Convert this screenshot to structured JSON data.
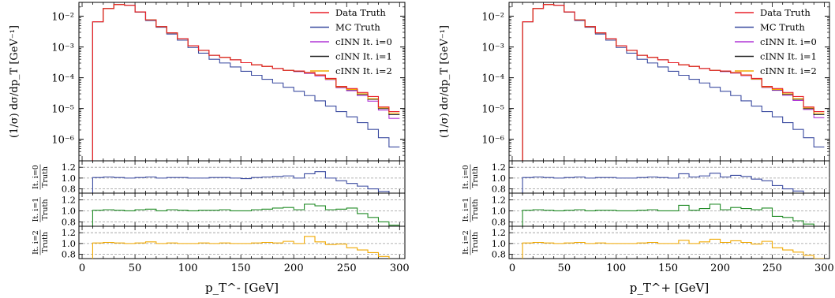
{
  "bins_x": [
    10,
    20,
    30,
    40,
    50,
    60,
    70,
    80,
    90,
    100,
    110,
    120,
    130,
    140,
    150,
    160,
    170,
    180,
    190,
    200,
    210,
    220,
    230,
    240,
    250,
    260,
    270,
    280,
    290,
    300
  ],
  "legend": [
    {
      "label": "Data Truth",
      "color": "#e8202a"
    },
    {
      "label": "MC Truth",
      "color": "#3b4ba0"
    },
    {
      "label": "cINN It. i=0",
      "color": "#b037d6"
    },
    {
      "label": "cINN It. i=1",
      "color": "#222222"
    },
    {
      "label": "cINN It. i=2",
      "color": "#f0a800"
    }
  ],
  "ratio_labels": [
    {
      "num": "It. i=0",
      "den": "Truth",
      "color": "#3b4ba0"
    },
    {
      "num": "It. i=1",
      "den": "Truth",
      "color": "#1f8a24"
    },
    {
      "num": "It. i=2",
      "den": "Truth",
      "color": "#f0a800"
    }
  ],
  "ylabel_main": "(1/σ) dσ/dp_T [GeV⁻¹]",
  "main_yticks": [
    "10⁻²",
    "10⁻³",
    "10⁻⁴",
    "10⁻⁵",
    "10⁻⁶"
  ],
  "ratio_yticks": [
    "1.2",
    "1.0",
    "0.8"
  ],
  "xticks": [
    "0",
    "50",
    "100",
    "150",
    "200",
    "250",
    "300"
  ],
  "chart_data": [
    {
      "type": "line",
      "xlabel": "p_T^- [GeV]",
      "ylabel": "(1/σ) dσ/dp_T [GeV⁻¹]",
      "xlim": [
        -3,
        305
      ],
      "ylim_log10": [
        -6.7,
        -1.55
      ],
      "y_scale": "log",
      "series": [
        {
          "name": "Data Truth",
          "values": [
            -2.18,
            -1.75,
            -1.62,
            -1.64,
            -1.86,
            -2.12,
            -2.34,
            -2.54,
            -2.73,
            -2.96,
            -3.11,
            -3.27,
            -3.34,
            -3.42,
            -3.51,
            -3.58,
            -3.63,
            -3.7,
            -3.76,
            -3.78,
            -3.83,
            -3.91,
            -4.02,
            -4.28,
            -4.35,
            -4.48,
            -4.61,
            -4.95,
            -5.1
          ]
        },
        {
          "name": "MC Truth",
          "values": [
            -2.18,
            -1.75,
            -1.62,
            -1.64,
            -1.87,
            -2.14,
            -2.36,
            -2.58,
            -2.78,
            -3.02,
            -3.2,
            -3.4,
            -3.52,
            -3.65,
            -3.79,
            -3.92,
            -4.05,
            -4.17,
            -4.31,
            -4.44,
            -4.58,
            -4.75,
            -4.92,
            -5.1,
            -5.27,
            -5.46,
            -5.68,
            -5.95,
            -6.25
          ]
        },
        {
          "name": "cINN It. i=0",
          "values": [
            -2.18,
            -1.75,
            -1.62,
            -1.64,
            -1.86,
            -2.12,
            -2.34,
            -2.54,
            -2.73,
            -2.96,
            -3.11,
            -3.27,
            -3.34,
            -3.42,
            -3.51,
            -3.58,
            -3.63,
            -3.7,
            -3.76,
            -3.8,
            -3.86,
            -3.94,
            -4.06,
            -4.33,
            -4.42,
            -4.58,
            -4.76,
            -5.05,
            -5.32
          ]
        },
        {
          "name": "cINN It. i=1",
          "values": [
            -2.18,
            -1.75,
            -1.62,
            -1.64,
            -1.86,
            -2.12,
            -2.34,
            -2.54,
            -2.73,
            -2.96,
            -3.11,
            -3.27,
            -3.34,
            -3.42,
            -3.51,
            -3.58,
            -3.63,
            -3.7,
            -3.76,
            -3.79,
            -3.84,
            -3.92,
            -4.04,
            -4.3,
            -4.39,
            -4.54,
            -4.7,
            -5.0,
            -5.2
          ]
        },
        {
          "name": "cINN It. i=2",
          "values": [
            -2.18,
            -1.75,
            -1.62,
            -1.64,
            -1.86,
            -2.12,
            -2.34,
            -2.54,
            -2.73,
            -2.96,
            -3.11,
            -3.27,
            -3.34,
            -3.42,
            -3.51,
            -3.58,
            -3.63,
            -3.7,
            -3.76,
            -3.78,
            -3.84,
            -3.92,
            -4.04,
            -4.3,
            -4.38,
            -4.52,
            -4.68,
            -4.98,
            -5.15
          ]
        }
      ],
      "ratios": [
        {
          "name": "It. i=0 / Truth",
          "ylim": [
            0.72,
            1.32
          ],
          "values": [
            1.01,
            1.02,
            1.01,
            1.0,
            1.01,
            1.02,
            1.0,
            1.01,
            1.01,
            1.0,
            1.0,
            1.01,
            1.01,
            1.0,
            0.99,
            1.01,
            1.02,
            1.03,
            1.04,
            1.0,
            1.08,
            1.12,
            1.0,
            0.95,
            0.9,
            0.85,
            0.8,
            0.75,
            0.7
          ]
        },
        {
          "name": "It. i=1 / Truth",
          "ylim": [
            0.72,
            1.32
          ],
          "values": [
            1.01,
            1.02,
            1.01,
            1.0,
            1.02,
            1.03,
            1.0,
            1.02,
            1.01,
            1.0,
            1.01,
            1.01,
            1.02,
            1.0,
            1.0,
            1.02,
            1.03,
            1.05,
            1.06,
            1.02,
            1.12,
            1.09,
            1.02,
            1.03,
            1.05,
            0.95,
            0.88,
            0.8,
            0.74
          ]
        },
        {
          "name": "It. i=2 / Truth",
          "ylim": [
            0.72,
            1.32
          ],
          "values": [
            1.01,
            1.02,
            1.01,
            1.0,
            1.01,
            1.03,
            1.0,
            1.01,
            1.0,
            1.0,
            1.01,
            1.0,
            1.01,
            1.0,
            1.0,
            1.01,
            1.02,
            1.01,
            1.04,
            1.0,
            1.13,
            1.03,
            0.98,
            0.99,
            0.92,
            0.88,
            0.83,
            0.76,
            0.7
          ]
        }
      ]
    },
    {
      "type": "line",
      "xlabel": "p_T^+ [GeV]",
      "ylabel": "(1/σ) dσ/dp_T [GeV⁻¹]",
      "xlim": [
        -3,
        305
      ],
      "ylim_log10": [
        -6.7,
        -1.55
      ],
      "y_scale": "log",
      "series": [
        {
          "name": "Data Truth",
          "values": [
            -2.18,
            -1.75,
            -1.62,
            -1.64,
            -1.86,
            -2.12,
            -2.34,
            -2.54,
            -2.73,
            -2.96,
            -3.11,
            -3.27,
            -3.34,
            -3.42,
            -3.51,
            -3.58,
            -3.63,
            -3.7,
            -3.76,
            -3.78,
            -3.83,
            -3.91,
            -4.02,
            -4.28,
            -4.35,
            -4.48,
            -4.61,
            -4.95,
            -5.1
          ]
        },
        {
          "name": "MC Truth",
          "values": [
            -2.18,
            -1.75,
            -1.62,
            -1.64,
            -1.87,
            -2.14,
            -2.36,
            -2.58,
            -2.78,
            -3.02,
            -3.2,
            -3.4,
            -3.52,
            -3.65,
            -3.79,
            -3.92,
            -4.05,
            -4.17,
            -4.31,
            -4.44,
            -4.58,
            -4.75,
            -4.92,
            -5.1,
            -5.27,
            -5.46,
            -5.68,
            -5.95,
            -6.25
          ]
        },
        {
          "name": "cINN It. i=0",
          "values": [
            -2.18,
            -1.75,
            -1.62,
            -1.64,
            -1.86,
            -2.12,
            -2.34,
            -2.54,
            -2.73,
            -2.96,
            -3.11,
            -3.27,
            -3.34,
            -3.42,
            -3.51,
            -3.58,
            -3.63,
            -3.7,
            -3.76,
            -3.8,
            -3.85,
            -3.93,
            -4.05,
            -4.32,
            -4.41,
            -4.57,
            -4.74,
            -5.03,
            -5.3
          ]
        },
        {
          "name": "cINN It. i=1",
          "values": [
            -2.18,
            -1.75,
            -1.62,
            -1.64,
            -1.86,
            -2.12,
            -2.34,
            -2.54,
            -2.73,
            -2.96,
            -3.11,
            -3.27,
            -3.34,
            -3.42,
            -3.51,
            -3.58,
            -3.63,
            -3.7,
            -3.76,
            -3.79,
            -3.84,
            -3.92,
            -4.04,
            -4.3,
            -4.39,
            -4.54,
            -4.7,
            -5.0,
            -5.2
          ]
        },
        {
          "name": "cINN It. i=2",
          "values": [
            -2.18,
            -1.75,
            -1.62,
            -1.64,
            -1.86,
            -2.12,
            -2.34,
            -2.54,
            -2.73,
            -2.96,
            -3.11,
            -3.27,
            -3.34,
            -3.42,
            -3.51,
            -3.58,
            -3.63,
            -3.7,
            -3.76,
            -3.78,
            -3.84,
            -3.92,
            -4.04,
            -4.3,
            -4.38,
            -4.52,
            -4.68,
            -4.98,
            -5.15
          ]
        }
      ],
      "ratios": [
        {
          "name": "It. i=0 / Truth",
          "ylim": [
            0.72,
            1.32
          ],
          "values": [
            1.01,
            1.02,
            1.01,
            1.0,
            1.01,
            1.02,
            1.0,
            1.01,
            1.01,
            1.0,
            1.0,
            1.01,
            1.02,
            1.01,
            1.0,
            1.08,
            1.02,
            1.04,
            1.09,
            1.02,
            1.05,
            1.03,
            0.98,
            0.95,
            0.86,
            0.8,
            0.76,
            0.72,
            0.7
          ]
        },
        {
          "name": "It. i=1 / Truth",
          "ylim": [
            0.72,
            1.32
          ],
          "values": [
            1.01,
            1.02,
            1.01,
            1.0,
            1.01,
            1.02,
            1.0,
            1.01,
            1.01,
            1.0,
            1.0,
            1.01,
            1.02,
            1.0,
            1.0,
            1.1,
            1.01,
            1.04,
            1.12,
            1.02,
            1.06,
            1.04,
            1.02,
            1.05,
            0.9,
            0.88,
            0.82,
            0.76,
            0.72
          ]
        },
        {
          "name": "It. i=2 / Truth",
          "ylim": [
            0.72,
            1.32
          ],
          "values": [
            1.01,
            1.02,
            1.01,
            1.0,
            1.01,
            1.02,
            1.0,
            1.01,
            1.0,
            1.0,
            1.0,
            1.01,
            1.02,
            1.0,
            1.0,
            1.06,
            1.0,
            1.03,
            1.08,
            1.02,
            1.05,
            1.02,
            0.99,
            1.04,
            0.92,
            0.88,
            0.84,
            0.78,
            0.72
          ]
        }
      ]
    }
  ]
}
